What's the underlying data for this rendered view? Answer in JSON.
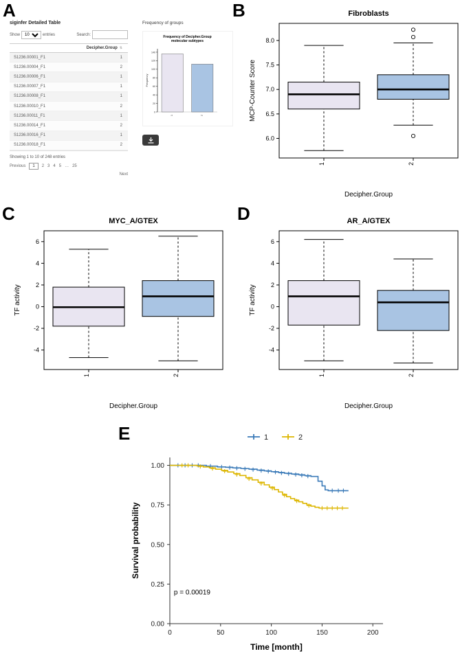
{
  "panels": {
    "a": "A",
    "b": "B",
    "c": "C",
    "d": "D",
    "e": "E"
  },
  "panel_a": {
    "table_title": "siginfer Detailed Table",
    "show_label": "Show",
    "page_size": "10",
    "entries_label": "entries",
    "search_label": "Search:",
    "search_value": "",
    "column_header": "Decipher.Group",
    "sort_icon": "⇅",
    "rows": [
      {
        "id": "S1236.00001_F1",
        "group": "1"
      },
      {
        "id": "S1236.00004_F1",
        "group": "2"
      },
      {
        "id": "S1236.00006_F1",
        "group": "1"
      },
      {
        "id": "S1236.00007_F1",
        "group": "1"
      },
      {
        "id": "S1236.00008_F1",
        "group": "1"
      },
      {
        "id": "S1236.00010_F1",
        "group": "2"
      },
      {
        "id": "S1236.00011_F1",
        "group": "1"
      },
      {
        "id": "S1236.00014_F1",
        "group": "2"
      },
      {
        "id": "S1236.00016_F1",
        "group": "1"
      },
      {
        "id": "S1236.00018_F1",
        "group": "2"
      }
    ],
    "showing_text": "Showing 1 to 10 of 248 entries",
    "pagination": {
      "previous": "Previous",
      "pages": [
        "1",
        "2",
        "3",
        "4",
        "5",
        "…",
        "25"
      ],
      "next": "Next"
    },
    "frequency_header": "Frequency of groups"
  },
  "chart_data": [
    {
      "type": "bar",
      "panel": "A",
      "title_lines": [
        "Frequency of  Decipher.Group",
        "molecular subtypes"
      ],
      "categories": [
        "1",
        "2"
      ],
      "values": [
        136,
        112
      ],
      "ylabel": "Frequency",
      "ylim": [
        0,
        148
      ],
      "yticks": [
        0,
        20,
        40,
        60,
        80,
        100,
        120,
        140
      ],
      "ytick_labels": [
        "0",
        "20",
        "40",
        "60",
        "80",
        "100",
        "120",
        "140"
      ],
      "colors": [
        "#e9e5f1",
        "#a9c4e3"
      ]
    },
    {
      "type": "boxplot",
      "panel": "B",
      "title": "Fibroblasts",
      "ylabel": "MCP-Counter Score",
      "xlabel": "Decipher.Group",
      "ylim": [
        5.6,
        8.35
      ],
      "yticks": [
        6.0,
        6.5,
        7.0,
        7.5,
        8.0
      ],
      "ytick_labels": [
        "6.0",
        "6.5",
        "7.0",
        "7.5",
        "8.0"
      ],
      "groups": [
        {
          "label": "1",
          "low": 5.75,
          "q1": 6.6,
          "median": 6.9,
          "q3": 7.15,
          "high": 7.9,
          "outliers": [],
          "color": "#e9e5f1"
        },
        {
          "label": "2",
          "low": 6.27,
          "q1": 6.8,
          "median": 7.0,
          "q3": 7.3,
          "high": 7.95,
          "outliers": [
            8.07,
            8.22,
            6.05
          ],
          "color": "#a9c4e3"
        }
      ]
    },
    {
      "type": "boxplot",
      "panel": "C",
      "title": "MYC_A/GTEX",
      "ylabel": "TF activity",
      "xlabel": "Decipher.Group",
      "ylim": [
        -5.8,
        7.0
      ],
      "yticks": [
        -4,
        -2,
        0,
        2,
        4,
        6
      ],
      "ytick_labels": [
        "-4",
        "-2",
        "0",
        "2",
        "4",
        "6"
      ],
      "groups": [
        {
          "label": "1",
          "low": -4.7,
          "q1": -1.8,
          "median": -0.05,
          "q3": 1.8,
          "high": 5.3,
          "outliers": [],
          "color": "#e9e5f1"
        },
        {
          "label": "2",
          "low": -5.0,
          "q1": -0.9,
          "median": 0.95,
          "q3": 2.4,
          "high": 6.5,
          "outliers": [],
          "color": "#a9c4e3"
        }
      ]
    },
    {
      "type": "boxplot",
      "panel": "D",
      "title": "AR_A/GTEX",
      "ylabel": "TF activity",
      "xlabel": "Decipher.Group",
      "ylim": [
        -5.8,
        7.0
      ],
      "yticks": [
        -4,
        -2,
        0,
        2,
        4,
        6
      ],
      "ytick_labels": [
        "-4",
        "-2",
        "0",
        "2",
        "4",
        "6"
      ],
      "groups": [
        {
          "label": "1",
          "low": -5.0,
          "q1": -1.7,
          "median": 0.95,
          "q3": 2.4,
          "high": 6.2,
          "outliers": [],
          "color": "#e9e5f1"
        },
        {
          "label": "2",
          "low": -5.2,
          "q1": -2.2,
          "median": 0.4,
          "q3": 1.5,
          "high": 4.4,
          "outliers": [],
          "color": "#a9c4e3"
        }
      ]
    },
    {
      "type": "line",
      "panel": "E",
      "subtype": "kaplan-meier",
      "ylabel": "Survival probability",
      "xlabel": "Time [month]",
      "xlim": [
        0,
        210
      ],
      "xticks": [
        0,
        50,
        100,
        150,
        200
      ],
      "xtick_labels": [
        "0",
        "50",
        "100",
        "150",
        "200"
      ],
      "ylim": [
        0,
        1.05
      ],
      "yticks": [
        0.0,
        0.25,
        0.5,
        0.75,
        1.0
      ],
      "ytick_labels": [
        "0.00",
        "0.25",
        "0.50",
        "0.75",
        "1.00"
      ],
      "annotation": "p = 0.00019",
      "annotation_at": [
        4,
        0.185
      ],
      "series": [
        {
          "name": "1",
          "color": "#3a7ab8",
          "steps": [
            [
              0,
              1
            ],
            [
              32,
              1
            ],
            [
              36,
              0.995
            ],
            [
              47,
              0.99
            ],
            [
              55,
              0.988
            ],
            [
              62,
              0.984
            ],
            [
              70,
              0.98
            ],
            [
              78,
              0.976
            ],
            [
              86,
              0.97
            ],
            [
              93,
              0.965
            ],
            [
              100,
              0.96
            ],
            [
              107,
              0.955
            ],
            [
              113,
              0.95
            ],
            [
              120,
              0.945
            ],
            [
              127,
              0.94
            ],
            [
              133,
              0.935
            ],
            [
              139,
              0.93
            ],
            [
              146,
              0.9
            ],
            [
              150,
              0.87
            ],
            [
              153,
              0.845
            ],
            [
              156,
              0.84
            ],
            [
              176,
              0.84
            ]
          ],
          "censors": [
            [
              8,
              1
            ],
            [
              15,
              1
            ],
            [
              22,
              1
            ],
            [
              28,
              1
            ],
            [
              40,
              0.995
            ],
            [
              51,
              0.99
            ],
            [
              59,
              0.986
            ],
            [
              66,
              0.982
            ],
            [
              74,
              0.978
            ],
            [
              82,
              0.973
            ],
            [
              90,
              0.967
            ],
            [
              97,
              0.962
            ],
            [
              104,
              0.957
            ],
            [
              110,
              0.952
            ],
            [
              117,
              0.947
            ],
            [
              124,
              0.942
            ],
            [
              130,
              0.937
            ],
            [
              136,
              0.932
            ],
            [
              160,
              0.84
            ],
            [
              166,
              0.84
            ],
            [
              171,
              0.84
            ]
          ]
        },
        {
          "name": "2",
          "color": "#ddb600",
          "steps": [
            [
              0,
              1
            ],
            [
              22,
              1
            ],
            [
              27,
              0.996
            ],
            [
              33,
              0.99
            ],
            [
              39,
              0.984
            ],
            [
              45,
              0.976
            ],
            [
              51,
              0.968
            ],
            [
              57,
              0.958
            ],
            [
              63,
              0.948
            ],
            [
              69,
              0.936
            ],
            [
              75,
              0.922
            ],
            [
              81,
              0.908
            ],
            [
              87,
              0.893
            ],
            [
              93,
              0.877
            ],
            [
              98,
              0.862
            ],
            [
              103,
              0.847
            ],
            [
              107,
              0.832
            ],
            [
              111,
              0.817
            ],
            [
              115,
              0.802
            ],
            [
              119,
              0.79
            ],
            [
              123,
              0.78
            ],
            [
              127,
              0.77
            ],
            [
              131,
              0.76
            ],
            [
              135,
              0.75
            ],
            [
              139,
              0.742
            ],
            [
              143,
              0.735
            ],
            [
              147,
              0.73
            ],
            [
              176,
              0.73
            ]
          ],
          "censors": [
            [
              12,
              1
            ],
            [
              18,
              1
            ],
            [
              30,
              0.993
            ],
            [
              42,
              0.98
            ],
            [
              54,
              0.963
            ],
            [
              66,
              0.942
            ],
            [
              78,
              0.915
            ],
            [
              90,
              0.885
            ],
            [
              101,
              0.855
            ],
            [
              113,
              0.81
            ],
            [
              125,
              0.775
            ],
            [
              137,
              0.746
            ],
            [
              150,
              0.73
            ],
            [
              155,
              0.73
            ],
            [
              160,
              0.73
            ],
            [
              165,
              0.73
            ],
            [
              170,
              0.73
            ]
          ]
        }
      ]
    }
  ]
}
